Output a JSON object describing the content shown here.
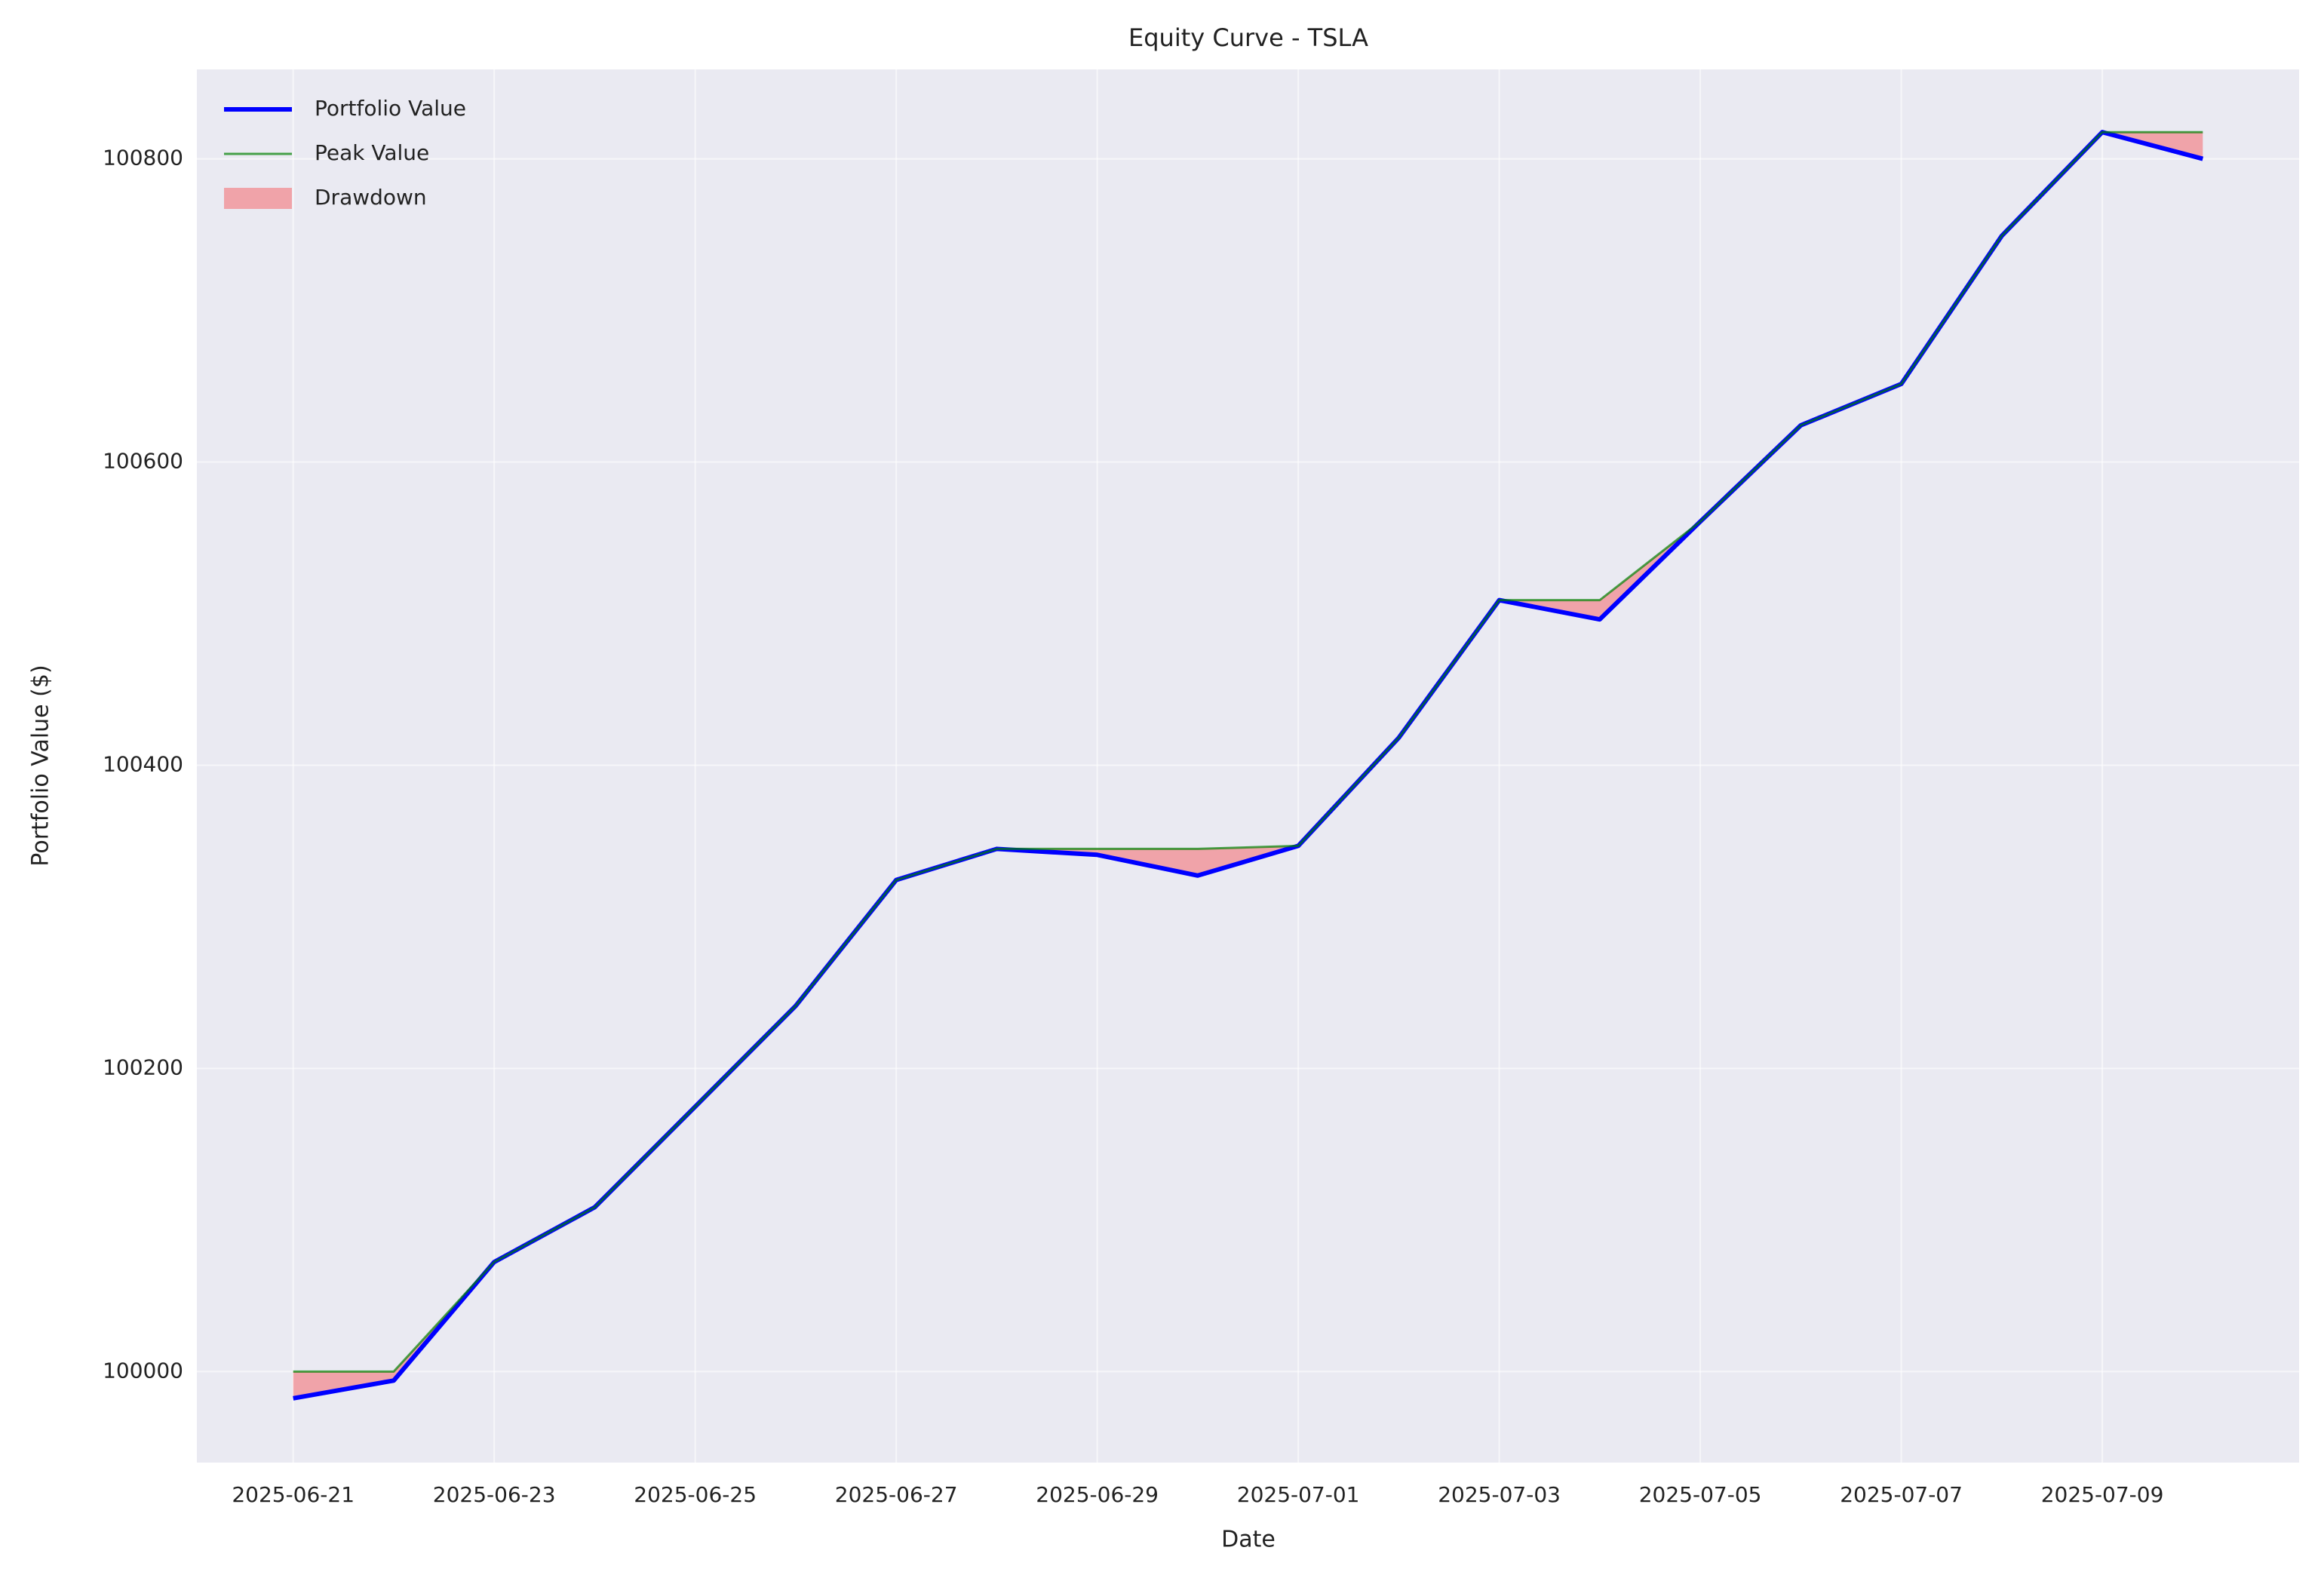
{
  "chart_data": {
    "type": "line",
    "title": "Equity Curve - TSLA",
    "xlabel": "Date",
    "ylabel": "Portfolio Value ($)",
    "x": [
      "2025-06-21",
      "2025-06-22",
      "2025-06-23",
      "2025-06-24",
      "2025-06-25",
      "2025-06-26",
      "2025-06-27",
      "2025-06-28",
      "2025-06-29",
      "2025-06-30",
      "2025-07-01",
      "2025-07-02",
      "2025-07-03",
      "2025-07-04",
      "2025-07-05",
      "2025-07-06",
      "2025-07-07",
      "2025-07-08",
      "2025-07-09",
      "2025-07-10"
    ],
    "series": [
      {
        "name": "Portfolio Value",
        "color": "#0000ff",
        "values": [
          99982.4,
          99994.1,
          100072.3,
          100108.4,
          100174.8,
          100241.3,
          100324.3,
          100344.8,
          100340.9,
          100327.2,
          100346.8,
          100418.1,
          100508.9,
          100496.2,
          100560.7,
          100624.2,
          100651.5,
          100749.2,
          100817.6,
          100800
        ]
      },
      {
        "name": "Peak Value",
        "color": "#008000",
        "values": [
          100000,
          100000,
          100072.3,
          100108.4,
          100174.8,
          100241.3,
          100324.3,
          100344.8,
          100344.8,
          100344.8,
          100346.8,
          100418.1,
          100508.9,
          100508.9,
          100560.7,
          100624.2,
          100651.5,
          100749.2,
          100817.6,
          100817.6
        ]
      }
    ],
    "fill": {
      "name": "Drawdown",
      "color": "#ff0000"
    },
    "xlim": [
      "2025-06-20T01:00:00Z",
      "2025-07-10T23:00:00Z"
    ],
    "xticks": [
      "2025-06-21",
      "2025-06-23",
      "2025-06-25",
      "2025-06-27",
      "2025-06-29",
      "2025-07-01",
      "2025-07-03",
      "2025-07-05",
      "2025-07-07",
      "2025-07-09"
    ],
    "ylim": [
      99940,
      100859
    ],
    "yticks": [
      100000,
      100200,
      100400,
      100600,
      100800
    ],
    "grid": true,
    "legend": "upper left"
  }
}
